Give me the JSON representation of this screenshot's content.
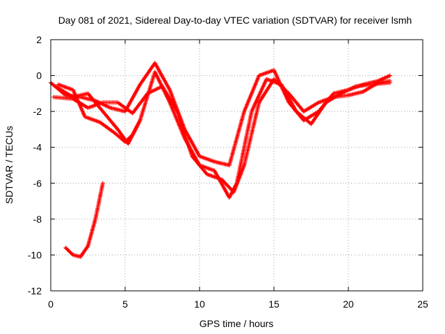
{
  "chart_data": {
    "type": "scatter",
    "title": "Day 081 of 2021, Sidereal Day-to-day VTEC variation (SDTVAR) for receiver lsmh",
    "xlabel": "GPS time / hours",
    "ylabel": "SDTVAR / TECUs",
    "xlim": [
      0,
      25
    ],
    "ylim": [
      -12,
      2
    ],
    "xticks": [
      0,
      5,
      10,
      15,
      20,
      25
    ],
    "yticks": [
      -12,
      -10,
      -8,
      -6,
      -4,
      -2,
      0,
      2
    ],
    "grid": true,
    "marker": "+",
    "color": "#ff0000",
    "series": [
      {
        "name": "track-1",
        "x": [
          0,
          1,
          2,
          3,
          4,
          5,
          6,
          7,
          8,
          9,
          10,
          11,
          12,
          13,
          14,
          15,
          16,
          17,
          18,
          19,
          20,
          21,
          22,
          22.8
        ],
        "y": [
          -0.4,
          -1.1,
          -1.2,
          -1.4,
          -1.8,
          -2.0,
          -0.5,
          0.7,
          -0.8,
          -3.0,
          -4.5,
          -4.8,
          -5.0,
          -2.0,
          0.0,
          0.3,
          -1.5,
          -2.5,
          -2.0,
          -1.0,
          -0.8,
          -0.5,
          -0.3,
          0.0
        ]
      },
      {
        "name": "track-2",
        "x": [
          0.3,
          1.5,
          2.5,
          3.5,
          4.5,
          5.2,
          6,
          7,
          8,
          9,
          10,
          11,
          12,
          12.5,
          13.5,
          14.5,
          15.5,
          16.5,
          17.5,
          18.5,
          19.5,
          20.5,
          21.5,
          22.8
        ],
        "y": [
          -0.6,
          -1.2,
          -1.0,
          -2.0,
          -3.0,
          -3.8,
          -2.5,
          0.2,
          -1.5,
          -3.5,
          -5.0,
          -5.3,
          -6.8,
          -6.0,
          -2.0,
          -0.2,
          -0.5,
          -2.0,
          -2.7,
          -1.5,
          -1.0,
          -0.6,
          -0.5,
          -0.4
        ]
      },
      {
        "name": "track-3",
        "x": [
          0.2,
          1.5,
          2.5,
          3.5,
          4.5,
          5.5,
          6.5,
          7.5,
          8.5,
          9.5,
          10.5,
          11.5,
          12.3,
          13,
          14,
          15,
          16,
          17,
          18,
          19,
          20,
          21,
          22,
          22.8
        ],
        "y": [
          -1.2,
          -1.3,
          -1.8,
          -1.5,
          -1.5,
          -2.1,
          -1.0,
          -0.6,
          -2.0,
          -4.5,
          -5.5,
          -5.8,
          -6.5,
          -5.0,
          -1.5,
          -0.2,
          -1.0,
          -2.0,
          -1.5,
          -1.2,
          -1.1,
          -0.9,
          -0.4,
          -0.3
        ]
      },
      {
        "name": "track-4",
        "x": [
          0.5,
          1.5,
          2.3,
          3.3,
          4.3,
          5.0,
          5.5,
          6.0
        ],
        "y": [
          -0.5,
          -0.8,
          -2.3,
          -2.6,
          -3.2,
          -3.7,
          -3.3,
          -2.5
        ]
      },
      {
        "name": "track-5",
        "x": [
          1.0,
          1.5,
          2.0,
          2.5,
          3.0,
          3.5
        ],
        "y": [
          -9.6,
          -10.0,
          -10.1,
          -9.5,
          -8.0,
          -6.0
        ]
      }
    ]
  }
}
